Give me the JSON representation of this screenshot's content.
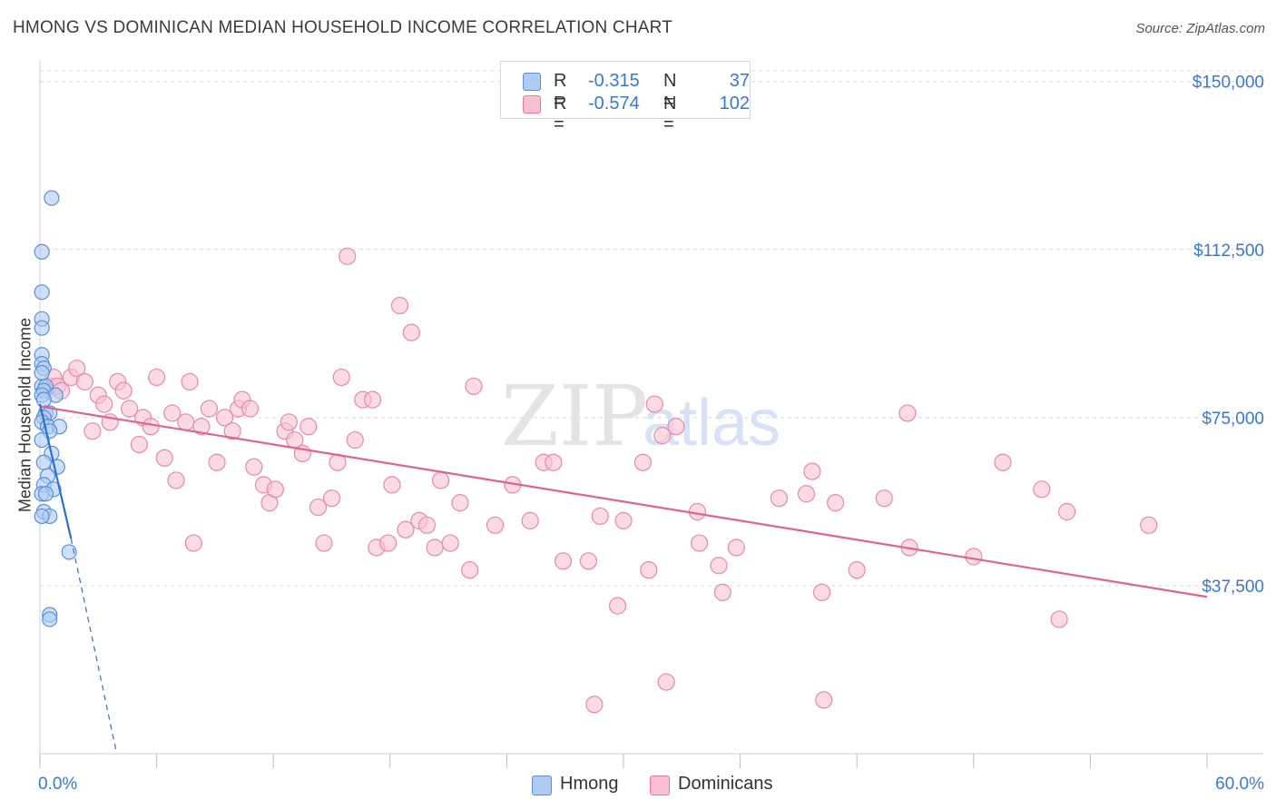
{
  "title": "HMONG VS DOMINICAN MEDIAN HOUSEHOLD INCOME CORRELATION CHART",
  "source": "Source: ZipAtlas.com",
  "watermark": {
    "zip": "ZIP",
    "atlas": "atlas"
  },
  "legend": {
    "r_label": "R =",
    "n_label": "N =",
    "rows": [
      {
        "r": "-0.315",
        "n": "37",
        "fill": "#aecbf2",
        "stroke": "#5d8fd6"
      },
      {
        "r": "-0.574",
        "n": "102",
        "fill": "#f7bfd0",
        "stroke": "#e8789c"
      }
    ]
  },
  "bottom_legend": [
    "Hmong",
    "Dominicans"
  ],
  "colors": {
    "hmong_fill": "#aecbf2",
    "hmong_stroke": "#5d8fd6",
    "hmong_line": "#2f6fd2",
    "dom_fill": "#f7c3d3",
    "dom_stroke": "#e78aa8",
    "dom_line": "#e0638c",
    "axis_label": "#3a78d4",
    "grid": "#d9d9d9"
  },
  "chart_data": {
    "type": "scatter",
    "ylabel": "Median Household Income",
    "xlabel": "",
    "xlim": [
      0,
      60
    ],
    "ylim": [
      0,
      154000
    ],
    "x_tick_labels": [
      "0.0%",
      "60.0%"
    ],
    "y_ticks": [
      37500,
      75000,
      112500,
      150000
    ],
    "y_tick_labels": [
      "$37,500",
      "$75,000",
      "$112,500",
      "$150,000"
    ],
    "series": [
      {
        "name": "Hmong",
        "r": -0.315,
        "n": 37,
        "points": [
          [
            0.6,
            124000
          ],
          [
            0.1,
            112000
          ],
          [
            0.1,
            103000
          ],
          [
            0.1,
            97000
          ],
          [
            0.1,
            95000
          ],
          [
            0.1,
            89000
          ],
          [
            0.1,
            87000
          ],
          [
            0.2,
            86000
          ],
          [
            0.1,
            82000
          ],
          [
            0.3,
            82000
          ],
          [
            0.2,
            81000
          ],
          [
            0.1,
            80000
          ],
          [
            0.8,
            80000
          ],
          [
            0.2,
            79000
          ],
          [
            0.3,
            76000
          ],
          [
            0.5,
            76000
          ],
          [
            0.2,
            75000
          ],
          [
            0.1,
            74000
          ],
          [
            0.4,
            73000
          ],
          [
            1.0,
            73000
          ],
          [
            0.5,
            72000
          ],
          [
            0.1,
            70000
          ],
          [
            0.6,
            67000
          ],
          [
            0.2,
            65000
          ],
          [
            0.9,
            64000
          ],
          [
            0.4,
            62000
          ],
          [
            0.2,
            60000
          ],
          [
            0.7,
            59000
          ],
          [
            0.1,
            58000
          ],
          [
            0.3,
            58000
          ],
          [
            0.2,
            54000
          ],
          [
            0.5,
            53000
          ],
          [
            0.1,
            53000
          ],
          [
            1.5,
            45000
          ],
          [
            0.5,
            31000
          ],
          [
            0.5,
            30000
          ],
          [
            0.1,
            85000
          ]
        ],
        "trend_solid": [
          [
            0,
            78000
          ],
          [
            1.6,
            48000
          ]
        ],
        "trend_dashed": [
          [
            1.6,
            48000
          ],
          [
            3.9,
            1000
          ]
        ]
      },
      {
        "name": "Dominicans",
        "r": -0.574,
        "n": 102,
        "points": [
          [
            0.5,
            82000
          ],
          [
            0.7,
            84000
          ],
          [
            0.9,
            82000
          ],
          [
            1.1,
            81000
          ],
          [
            1.6,
            84000
          ],
          [
            1.9,
            86000
          ],
          [
            2.3,
            83000
          ],
          [
            2.7,
            72000
          ],
          [
            3.0,
            80000
          ],
          [
            3.3,
            78000
          ],
          [
            3.6,
            74000
          ],
          [
            4.0,
            83000
          ],
          [
            4.3,
            81000
          ],
          [
            4.6,
            77000
          ],
          [
            5.1,
            69000
          ],
          [
            5.3,
            75000
          ],
          [
            5.7,
            73000
          ],
          [
            6.0,
            84000
          ],
          [
            6.4,
            66000
          ],
          [
            6.8,
            76000
          ],
          [
            7.0,
            61000
          ],
          [
            7.5,
            74000
          ],
          [
            7.7,
            83000
          ],
          [
            7.9,
            47000
          ],
          [
            8.3,
            73000
          ],
          [
            8.7,
            77000
          ],
          [
            9.1,
            65000
          ],
          [
            9.5,
            75000
          ],
          [
            9.9,
            72000
          ],
          [
            10.2,
            77000
          ],
          [
            10.4,
            79000
          ],
          [
            10.8,
            77000
          ],
          [
            11.0,
            64000
          ],
          [
            11.5,
            60000
          ],
          [
            11.8,
            56000
          ],
          [
            12.1,
            59000
          ],
          [
            12.6,
            72000
          ],
          [
            12.8,
            74000
          ],
          [
            13.1,
            70000
          ],
          [
            13.5,
            67000
          ],
          [
            13.8,
            73000
          ],
          [
            14.3,
            55000
          ],
          [
            14.6,
            47000
          ],
          [
            15.0,
            57000
          ],
          [
            15.3,
            65000
          ],
          [
            15.5,
            84000
          ],
          [
            15.8,
            111000
          ],
          [
            16.2,
            70000
          ],
          [
            16.6,
            79000
          ],
          [
            17.1,
            79000
          ],
          [
            17.3,
            46000
          ],
          [
            17.9,
            47000
          ],
          [
            18.1,
            60000
          ],
          [
            18.5,
            100000
          ],
          [
            18.8,
            50000
          ],
          [
            19.1,
            94000
          ],
          [
            19.5,
            52000
          ],
          [
            19.9,
            51000
          ],
          [
            20.3,
            46000
          ],
          [
            20.6,
            61000
          ],
          [
            21.1,
            47000
          ],
          [
            21.6,
            56000
          ],
          [
            22.1,
            41000
          ],
          [
            22.3,
            82000
          ],
          [
            23.4,
            51000
          ],
          [
            24.3,
            60000
          ],
          [
            25.2,
            52000
          ],
          [
            25.9,
            65000
          ],
          [
            26.4,
            65000
          ],
          [
            26.9,
            43000
          ],
          [
            28.2,
            43000
          ],
          [
            28.5,
            11000
          ],
          [
            28.8,
            53000
          ],
          [
            29.7,
            33000
          ],
          [
            30.0,
            52000
          ],
          [
            31.0,
            65000
          ],
          [
            31.3,
            41000
          ],
          [
            31.6,
            78000
          ],
          [
            32.0,
            71000
          ],
          [
            32.2,
            16000
          ],
          [
            32.7,
            73000
          ],
          [
            33.8,
            54000
          ],
          [
            33.9,
            47000
          ],
          [
            34.9,
            42000
          ],
          [
            35.1,
            36000
          ],
          [
            35.8,
            46000
          ],
          [
            38.0,
            57000
          ],
          [
            39.4,
            58000
          ],
          [
            39.7,
            63000
          ],
          [
            40.2,
            36000
          ],
          [
            40.3,
            12000
          ],
          [
            40.9,
            56000
          ],
          [
            42.0,
            41000
          ],
          [
            43.4,
            57000
          ],
          [
            44.6,
            76000
          ],
          [
            44.7,
            46000
          ],
          [
            48.0,
            44000
          ],
          [
            49.5,
            65000
          ],
          [
            51.5,
            59000
          ],
          [
            52.4,
            30000
          ],
          [
            52.8,
            54000
          ],
          [
            57.0,
            51000
          ]
        ],
        "trend_solid": [
          [
            0,
            77500
          ],
          [
            60,
            35000
          ]
        ]
      }
    ]
  }
}
